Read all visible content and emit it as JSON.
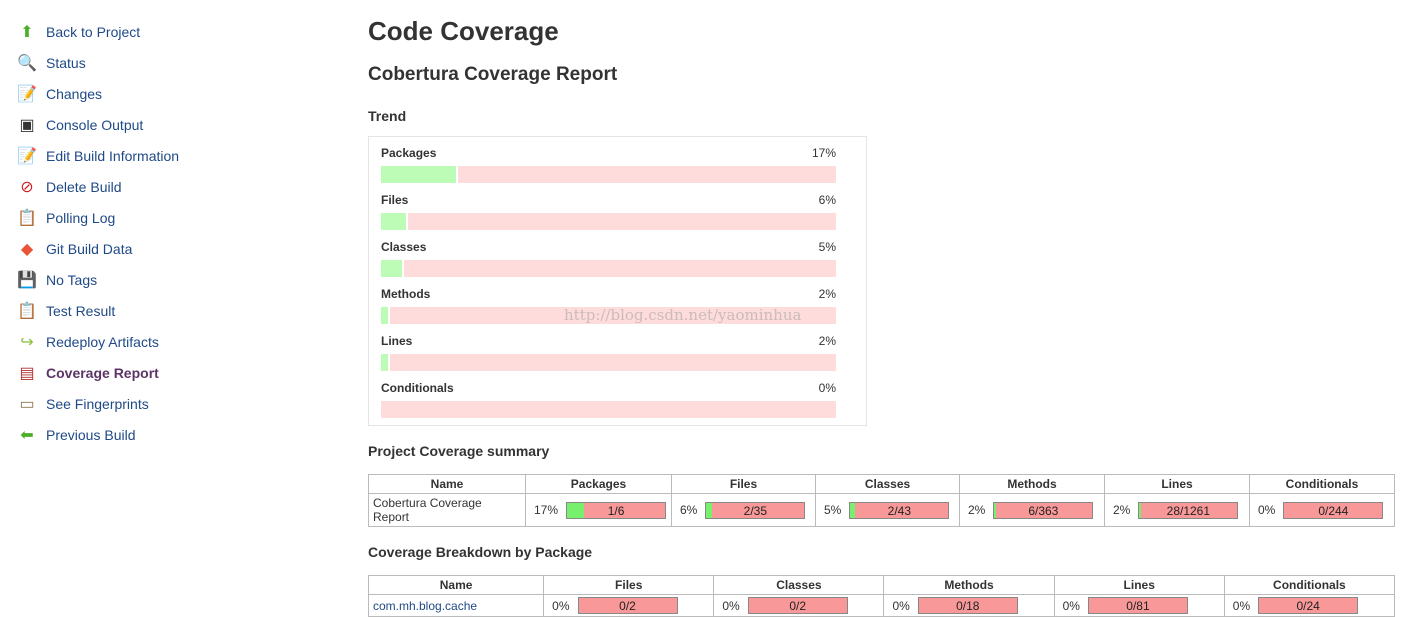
{
  "sidebar": {
    "items": [
      {
        "label": "Back to Project",
        "icon": "up-arrow-icon",
        "glyph": "⬆",
        "color": "#4caf2a"
      },
      {
        "label": "Status",
        "icon": "magnifier-icon",
        "glyph": "🔍",
        "color": "#5c8fc9"
      },
      {
        "label": "Changes",
        "icon": "notepad-icon",
        "glyph": "📝",
        "color": "#a08a50"
      },
      {
        "label": "Console Output",
        "icon": "terminal-icon",
        "glyph": "▣",
        "color": "#333"
      },
      {
        "label": "Edit Build Information",
        "icon": "notepad-icon",
        "glyph": "📝",
        "color": "#a08a50"
      },
      {
        "label": "Delete Build",
        "icon": "no-entry-icon",
        "glyph": "⊘",
        "color": "#d21f1f"
      },
      {
        "label": "Polling Log",
        "icon": "clipboard-icon",
        "glyph": "📋",
        "color": "#b07a30"
      },
      {
        "label": "Git Build Data",
        "icon": "git-icon",
        "glyph": "◆",
        "color": "#e8533a"
      },
      {
        "label": "No Tags",
        "icon": "floppy-icon",
        "glyph": "💾",
        "color": "#3a5f9a"
      },
      {
        "label": "Test Result",
        "icon": "clipboard-icon",
        "glyph": "📋",
        "color": "#b07a30"
      },
      {
        "label": "Redeploy Artifacts",
        "icon": "redeploy-arrow-icon",
        "glyph": "↪",
        "color": "#8bbf3a"
      },
      {
        "label": "Coverage Report",
        "icon": "coverage-chart-icon",
        "glyph": "▤",
        "color": "#b03030",
        "active": true
      },
      {
        "label": "See Fingerprints",
        "icon": "fingerprint-card-icon",
        "glyph": "▭",
        "color": "#8a7a50"
      },
      {
        "label": "Previous Build",
        "icon": "left-arrow-icon",
        "glyph": "⬅",
        "color": "#4caf2a"
      }
    ]
  },
  "page": {
    "title": "Code Coverage",
    "report_title": "Cobertura Coverage Report",
    "trend_heading": "Trend",
    "summary_heading": "Project Coverage summary",
    "breakdown_heading": "Coverage Breakdown by Package",
    "watermark": "http://blog.csdn.net/yaominhua"
  },
  "trend": [
    {
      "label": "Packages",
      "pct": 17,
      "text": "17%"
    },
    {
      "label": "Files",
      "pct": 6,
      "text": "6%"
    },
    {
      "label": "Classes",
      "pct": 5,
      "text": "5%"
    },
    {
      "label": "Methods",
      "pct": 2,
      "text": "2%"
    },
    {
      "label": "Lines",
      "pct": 2,
      "text": "2%"
    },
    {
      "label": "Conditionals",
      "pct": 0,
      "text": "0%"
    }
  ],
  "summary": {
    "headers": [
      "Name",
      "Packages",
      "Files",
      "Classes",
      "Methods",
      "Lines",
      "Conditionals"
    ],
    "rows": [
      {
        "name": "Cobertura Coverage Report",
        "cells": [
          {
            "pct": "17%",
            "ratio": "1/6",
            "fill": 17
          },
          {
            "pct": "6%",
            "ratio": "2/35",
            "fill": 6
          },
          {
            "pct": "5%",
            "ratio": "2/43",
            "fill": 5
          },
          {
            "pct": "2%",
            "ratio": "6/363",
            "fill": 2
          },
          {
            "pct": "2%",
            "ratio": "28/1261",
            "fill": 2
          },
          {
            "pct": "0%",
            "ratio": "0/244",
            "fill": 0
          }
        ]
      }
    ]
  },
  "breakdown": {
    "headers": [
      "Name",
      "Files",
      "Classes",
      "Methods",
      "Lines",
      "Conditionals"
    ],
    "rows": [
      {
        "name": "com.mh.blog.cache",
        "cells": [
          {
            "pct": "0%",
            "ratio": "0/2",
            "fill": 0
          },
          {
            "pct": "0%",
            "ratio": "0/2",
            "fill": 0
          },
          {
            "pct": "0%",
            "ratio": "0/18",
            "fill": 0
          },
          {
            "pct": "0%",
            "ratio": "0/81",
            "fill": 0
          },
          {
            "pct": "0%",
            "ratio": "0/24",
            "fill": 0
          }
        ]
      }
    ]
  }
}
